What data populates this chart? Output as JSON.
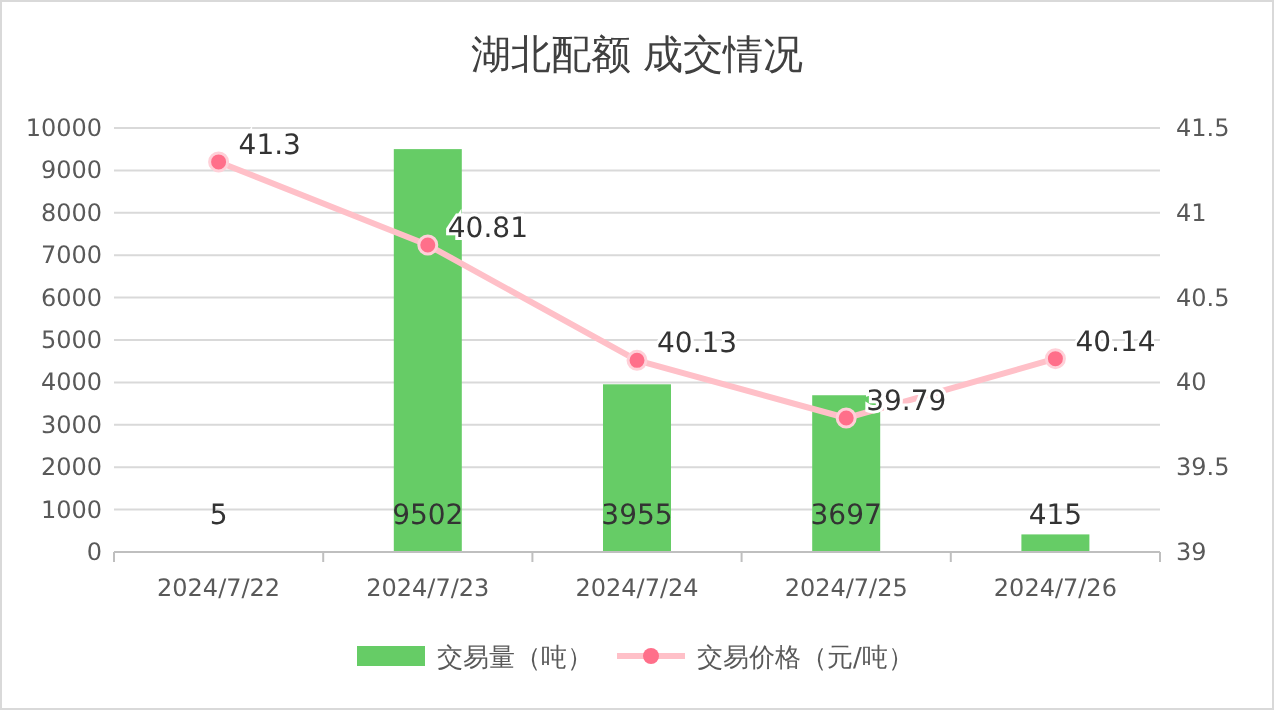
{
  "chart_data": {
    "type": "bar",
    "title": "湖北配额 成交情况",
    "categories": [
      "2024/7/22",
      "2024/7/23",
      "2024/7/24",
      "2024/7/25",
      "2024/7/26"
    ],
    "series": [
      {
        "name": "交易量（吨）",
        "color": "#66cc66",
        "values": [
          5,
          9502,
          3955,
          3697,
          415
        ]
      },
      {
        "name": "交易价格（元/吨）",
        "type": "line",
        "axis": "y2",
        "color": "#ffc0c8",
        "marker": "circle",
        "values": [
          41.3,
          40.81,
          40.13,
          39.79,
          40.14
        ]
      }
    ],
    "ylim": [
      0,
      10000
    ],
    "yticks": [
      0,
      1000,
      2000,
      3000,
      4000,
      5000,
      6000,
      7000,
      8000,
      9000,
      10000
    ],
    "y2lim": [
      39,
      41.5
    ],
    "y2ticks": [
      39,
      39.5,
      40,
      40.5,
      41,
      41.5
    ],
    "grid": "y",
    "legend": "bottom",
    "data_labels": true
  }
}
